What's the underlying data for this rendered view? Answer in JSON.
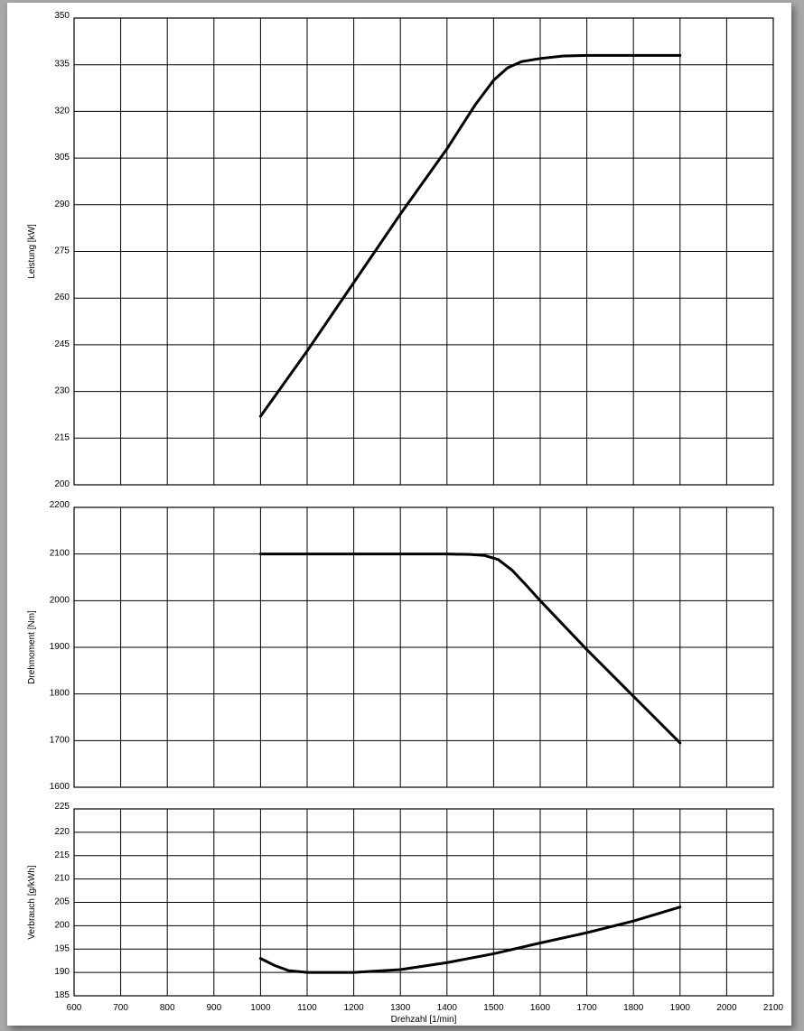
{
  "chart_data": [
    {
      "type": "line",
      "ylabel": "Leistung [kW]",
      "xlim": [
        600,
        2100
      ],
      "ylim": [
        200,
        350
      ],
      "x_ticks": [
        600,
        700,
        800,
        900,
        1000,
        1100,
        1200,
        1300,
        1400,
        1500,
        1600,
        1700,
        1800,
        1900,
        2000,
        2100
      ],
      "y_ticks": [
        200,
        215,
        230,
        245,
        260,
        275,
        290,
        305,
        320,
        335,
        350
      ],
      "grid": true,
      "series": [
        {
          "x": [
            1000,
            1100,
            1200,
            1300,
            1400,
            1460,
            1500,
            1530,
            1560,
            1600,
            1650,
            1700,
            1800,
            1900
          ],
          "y": [
            222,
            243,
            265,
            287,
            308,
            322,
            330,
            334,
            336,
            337,
            337.8,
            338,
            338,
            338
          ]
        }
      ]
    },
    {
      "type": "line",
      "ylabel": "Drehmoment [Nm]",
      "xlim": [
        600,
        2100
      ],
      "ylim": [
        1600,
        2200
      ],
      "x_ticks": [
        600,
        700,
        800,
        900,
        1000,
        1100,
        1200,
        1300,
        1400,
        1500,
        1600,
        1700,
        1800,
        1900,
        2000,
        2100
      ],
      "y_ticks": [
        1600,
        1700,
        1800,
        1900,
        2000,
        2100,
        2200
      ],
      "grid": true,
      "series": [
        {
          "x": [
            1000,
            1100,
            1200,
            1300,
            1400,
            1450,
            1480,
            1510,
            1540,
            1570,
            1600,
            1700,
            1800,
            1900
          ],
          "y": [
            2100,
            2100,
            2100,
            2100,
            2100,
            2099,
            2097,
            2088,
            2065,
            2033,
            2000,
            1895,
            1795,
            1695
          ]
        }
      ]
    },
    {
      "type": "line",
      "ylabel": "Verbrauch [g/kWh]",
      "xlabel": "Drehzahl [1/min]",
      "xlim": [
        600,
        2100
      ],
      "ylim": [
        185,
        225
      ],
      "x_ticks": [
        600,
        700,
        800,
        900,
        1000,
        1100,
        1200,
        1300,
        1400,
        1500,
        1600,
        1700,
        1800,
        1900,
        2000,
        2100
      ],
      "y_ticks": [
        185,
        190,
        195,
        200,
        205,
        210,
        215,
        220,
        225
      ],
      "grid": true,
      "series": [
        {
          "x": [
            1000,
            1030,
            1060,
            1100,
            1200,
            1300,
            1400,
            1500,
            1600,
            1700,
            1800,
            1900
          ],
          "y": [
            193,
            191.5,
            190.4,
            190,
            190,
            190.6,
            192.1,
            194,
            196.3,
            198.5,
            201,
            204
          ]
        }
      ]
    }
  ]
}
